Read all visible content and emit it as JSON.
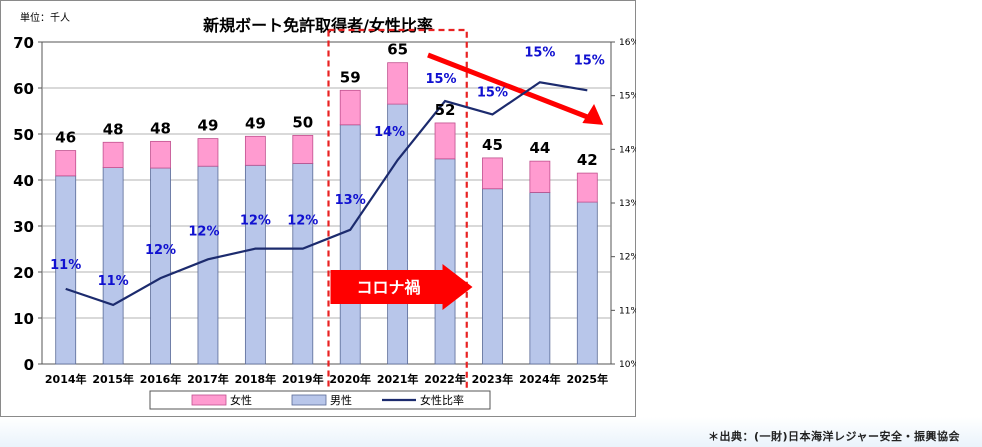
{
  "chart_data": {
    "type": "bar",
    "title": "新規ボート免許取得者/女性比率",
    "unit_label": "単位：千人",
    "categories": [
      "2014年",
      "2015年",
      "2016年",
      "2017年",
      "2018年",
      "2019年",
      "2020年",
      "2021年",
      "2022年",
      "2023年",
      "2024年",
      "2025年"
    ],
    "series": [
      {
        "name": "女性",
        "values": [
          5.5,
          5.5,
          5.8,
          6.0,
          6.3,
          6.1,
          7.5,
          9.0,
          7.8,
          6.7,
          6.8,
          6.3
        ],
        "color": "#ff9bd0"
      },
      {
        "name": "男性",
        "values": [
          40.9,
          42.7,
          42.6,
          43.0,
          43.2,
          43.6,
          52.0,
          56.5,
          44.6,
          38.1,
          37.3,
          35.2
        ],
        "color": "#b8c6ea"
      },
      {
        "name": "女性比率",
        "type": "line",
        "axis": "right",
        "values": [
          11.4,
          11.1,
          11.6,
          11.95,
          12.15,
          12.15,
          12.5,
          13.8,
          14.9,
          14.65,
          15.25,
          15.1
        ],
        "color": "#1c2b6e"
      }
    ],
    "totals": [
      "46",
      "48",
      "48",
      "49",
      "49",
      "50",
      "59",
      "65",
      "52",
      "45",
      "44",
      "42"
    ],
    "ratio_labels": [
      "11%",
      "11%",
      "12%",
      "12%",
      "12%",
      "12%",
      "13%",
      "14%",
      "15%",
      "15%",
      "15%",
      "15%"
    ],
    "y_ticks": [
      "0",
      "10",
      "20",
      "30",
      "40",
      "50",
      "60",
      "70"
    ],
    "y_range": [
      0,
      70
    ],
    "y2_ticks": [
      "10%",
      "11%",
      "12%",
      "13%",
      "14%",
      "15%",
      "16%"
    ],
    "y2_range": [
      10,
      16
    ],
    "stacked": true,
    "grid": true,
    "legend_position": "bottom",
    "annotation": {
      "text": "コロナ禍",
      "colors": {
        "box": "#e82222",
        "arrow": "#ff0000"
      }
    }
  },
  "source": "＊出典：(一財)日本海洋レジャー安全・振興協会"
}
